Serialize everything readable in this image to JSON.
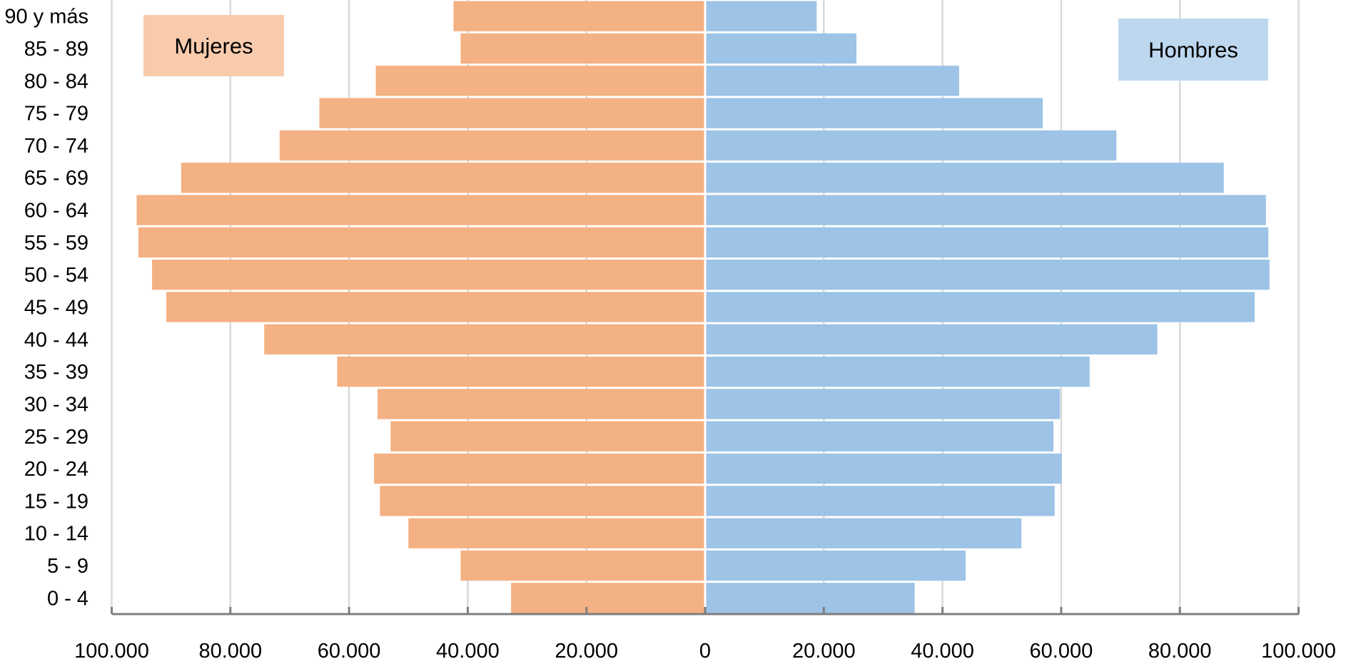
{
  "chart_data": {
    "type": "bar",
    "orientation": "horizontal",
    "layout": "population-pyramid",
    "categories": [
      "0 - 4",
      "5 - 9",
      "10 - 14",
      "15 - 19",
      "20 - 24",
      "25 - 29",
      "30 - 34",
      "35 - 39",
      "40 - 44",
      "45 - 49",
      "50 - 54",
      "55 - 59",
      "60 - 64",
      "65 - 69",
      "70 - 74",
      "75 - 79",
      "80 - 84",
      "85 - 89",
      "90 y más"
    ],
    "series": [
      {
        "name": "Mujeres",
        "side": "left",
        "color": "#F4B183",
        "values": [
          32700,
          41200,
          50000,
          54800,
          55800,
          53000,
          55200,
          62000,
          74300,
          90800,
          93200,
          95500,
          95800,
          88300,
          71700,
          65000,
          55500,
          41200,
          42400
        ]
      },
      {
        "name": "Hombres",
        "side": "right",
        "color": "#9DC3E6",
        "values": [
          35300,
          43900,
          53300,
          58900,
          60100,
          58700,
          59800,
          64800,
          76200,
          92600,
          95100,
          94900,
          94500,
          87400,
          69300,
          56900,
          42800,
          25500,
          18800
        ]
      }
    ],
    "x_ticks": [
      "100.000",
      "80.000",
      "60.000",
      "40.000",
      "20.000",
      "0",
      "20.000",
      "40.000",
      "60.000",
      "80.000",
      "100.000"
    ],
    "xlim": [
      -100000,
      100000
    ],
    "grid": "vertical",
    "legend": [
      {
        "label": "Mujeres",
        "placement": "top-left",
        "color": "#F8CBAD"
      },
      {
        "label": "Hombres",
        "placement": "top-right",
        "color": "#BDD7EE"
      }
    ],
    "title": "",
    "xlabel": "",
    "ylabel": ""
  }
}
